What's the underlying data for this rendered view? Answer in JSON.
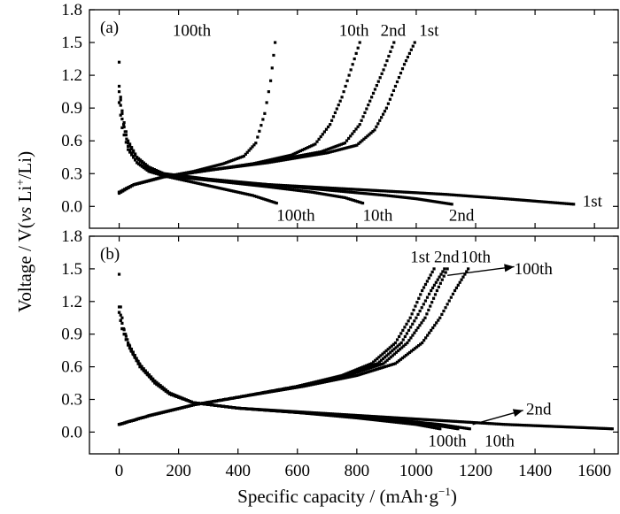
{
  "figure": {
    "ylabel": "Voltage / V(vs Li+/Li)",
    "ylabel_parts": {
      "pre": "Voltage / V(",
      "vs": "vs",
      "li": " Li",
      "plus": "+",
      "post": "/Li)"
    },
    "xlabel": "Specific capacity / (mAh·g−1)",
    "xlabel_parts": {
      "main": "Specific capacity / (mAh·g",
      "sup": "−1",
      "close": ")"
    }
  },
  "chart_data": [
    {
      "type": "scatter",
      "panel": "(a)",
      "xlabel": "Specific capacity / (mAh·g−1)",
      "ylabel": "Voltage / V(vs Li+/Li)",
      "xlim": [
        -100,
        1680
      ],
      "ylim": [
        -0.2,
        1.8
      ],
      "x_ticks": [
        0,
        200,
        400,
        600,
        800,
        1000,
        1200,
        1400,
        1600
      ],
      "y_ticks": [
        "0.0",
        "0.3",
        "0.6",
        "0.9",
        "1.2",
        "1.5",
        "1.8"
      ],
      "grid": false,
      "annotations": [
        {
          "text": "100th",
          "x": 180,
          "y": 1.56,
          "anchor": "start"
        },
        {
          "text": "10th",
          "x": 740,
          "y": 1.56,
          "anchor": "start"
        },
        {
          "text": "2nd",
          "x": 880,
          "y": 1.56,
          "anchor": "start"
        },
        {
          "text": "1st",
          "x": 1010,
          "y": 1.56,
          "anchor": "start"
        },
        {
          "text": "100th",
          "x": 530,
          "y": -0.13,
          "anchor": "start"
        },
        {
          "text": "10th",
          "x": 820,
          "y": -0.13,
          "anchor": "start"
        },
        {
          "text": "2nd",
          "x": 1110,
          "y": -0.13,
          "anchor": "start"
        },
        {
          "text": "1st",
          "x": 1560,
          "y": 0.0,
          "anchor": "start"
        }
      ],
      "series": [
        {
          "cycle": "1st",
          "curve": "discharge",
          "points": [
            [
              0,
              1.32
            ],
            [
              5,
              1.0
            ],
            [
              15,
              0.75
            ],
            [
              30,
              0.55
            ],
            [
              60,
              0.4
            ],
            [
              100,
              0.33
            ],
            [
              150,
              0.28
            ],
            [
              300,
              0.24
            ],
            [
              500,
              0.2
            ],
            [
              700,
              0.17
            ],
            [
              900,
              0.14
            ],
            [
              1100,
              0.11
            ],
            [
              1300,
              0.07
            ],
            [
              1530,
              0.02
            ]
          ]
        },
        {
          "cycle": "1st",
          "curve": "charge",
          "points": [
            [
              0,
              0.12
            ],
            [
              50,
              0.2
            ],
            [
              150,
              0.27
            ],
            [
              300,
              0.33
            ],
            [
              500,
              0.4
            ],
            [
              700,
              0.49
            ],
            [
              800,
              0.56
            ],
            [
              860,
              0.7
            ],
            [
              900,
              0.9
            ],
            [
              930,
              1.1
            ],
            [
              960,
              1.3
            ],
            [
              995,
              1.5
            ]
          ]
        },
        {
          "cycle": "2nd",
          "curve": "discharge",
          "points": [
            [
              0,
              1.1
            ],
            [
              10,
              0.85
            ],
            [
              30,
              0.6
            ],
            [
              60,
              0.45
            ],
            [
              100,
              0.36
            ],
            [
              150,
              0.3
            ],
            [
              300,
              0.25
            ],
            [
              500,
              0.2
            ],
            [
              700,
              0.15
            ],
            [
              900,
              0.1
            ],
            [
              1000,
              0.07
            ],
            [
              1120,
              0.02
            ]
          ]
        },
        {
          "cycle": "2nd",
          "curve": "charge",
          "points": [
            [
              0,
              0.13
            ],
            [
              50,
              0.2
            ],
            [
              150,
              0.27
            ],
            [
              300,
              0.33
            ],
            [
              500,
              0.41
            ],
            [
              680,
              0.5
            ],
            [
              760,
              0.58
            ],
            [
              810,
              0.75
            ],
            [
              850,
              1.0
            ],
            [
              890,
              1.25
            ],
            [
              925,
              1.5
            ]
          ]
        },
        {
          "cycle": "10th",
          "curve": "discharge",
          "points": [
            [
              0,
              1.05
            ],
            [
              10,
              0.8
            ],
            [
              30,
              0.58
            ],
            [
              60,
              0.44
            ],
            [
              100,
              0.35
            ],
            [
              150,
              0.3
            ],
            [
              300,
              0.24
            ],
            [
              500,
              0.18
            ],
            [
              650,
              0.13
            ],
            [
              760,
              0.08
            ],
            [
              820,
              0.03
            ]
          ]
        },
        {
          "cycle": "10th",
          "curve": "charge",
          "points": [
            [
              0,
              0.13
            ],
            [
              50,
              0.2
            ],
            [
              150,
              0.27
            ],
            [
              300,
              0.33
            ],
            [
              450,
              0.39
            ],
            [
              580,
              0.47
            ],
            [
              660,
              0.57
            ],
            [
              710,
              0.75
            ],
            [
              750,
              1.0
            ],
            [
              780,
              1.25
            ],
            [
              810,
              1.5
            ]
          ]
        },
        {
          "cycle": "100th",
          "curve": "discharge",
          "points": [
            [
              0,
              0.95
            ],
            [
              10,
              0.72
            ],
            [
              30,
              0.52
            ],
            [
              60,
              0.4
            ],
            [
              100,
              0.32
            ],
            [
              150,
              0.28
            ],
            [
              250,
              0.22
            ],
            [
              350,
              0.16
            ],
            [
              450,
              0.1
            ],
            [
              530,
              0.03
            ]
          ]
        },
        {
          "cycle": "100th",
          "curve": "charge",
          "points": [
            [
              0,
              0.13
            ],
            [
              50,
              0.2
            ],
            [
              150,
              0.27
            ],
            [
              250,
              0.32
            ],
            [
              350,
              0.39
            ],
            [
              420,
              0.46
            ],
            [
              460,
              0.58
            ],
            [
              490,
              0.85
            ],
            [
              510,
              1.15
            ],
            [
              525,
              1.5
            ]
          ]
        }
      ]
    },
    {
      "type": "scatter",
      "panel": "(b)",
      "xlabel": "Specific capacity / (mAh·g−1)",
      "ylabel": "Voltage / V(vs Li+/Li)",
      "xlim": [
        -100,
        1680
      ],
      "ylim": [
        -0.2,
        1.8
      ],
      "x_ticks": [
        0,
        200,
        400,
        600,
        800,
        1000,
        1200,
        1400,
        1600
      ],
      "y_ticks": [
        "0.0",
        "0.3",
        "0.6",
        "0.9",
        "1.2",
        "1.5",
        "1.8"
      ],
      "grid": false,
      "annotations": [
        {
          "text": "1st",
          "x": 980,
          "y": 1.56,
          "anchor": "start"
        },
        {
          "text": "2nd",
          "x": 1060,
          "y": 1.56,
          "anchor": "start"
        },
        {
          "text": "10th",
          "x": 1150,
          "y": 1.56,
          "anchor": "start"
        },
        {
          "text": "100th",
          "x": 1330,
          "y": 1.45,
          "anchor": "start"
        },
        {
          "text": "2nd",
          "x": 1370,
          "y": 0.16,
          "anchor": "start"
        },
        {
          "text": "100th",
          "x": 1040,
          "y": -0.13,
          "anchor": "start"
        },
        {
          "text": "10th",
          "x": 1230,
          "y": -0.13,
          "anchor": "start"
        }
      ],
      "arrows": [
        {
          "from": [
            1105,
            1.44
          ],
          "to": [
            1330,
            1.52
          ]
        },
        {
          "from": [
            1190,
            0.07
          ],
          "to": [
            1360,
            0.2
          ]
        }
      ],
      "series": [
        {
          "cycle": "1st",
          "curve": "discharge",
          "points": [
            [
              0,
              1.45
            ],
            [
              5,
              1.15
            ],
            [
              15,
              0.95
            ],
            [
              40,
              0.75
            ],
            [
              80,
              0.58
            ],
            [
              120,
              0.45
            ],
            [
              170,
              0.35
            ],
            [
              250,
              0.27
            ],
            [
              400,
              0.22
            ],
            [
              600,
              0.18
            ],
            [
              800,
              0.13
            ],
            [
              1000,
              0.07
            ],
            [
              1080,
              0.03
            ]
          ]
        },
        {
          "cycle": "1st",
          "curve": "charge",
          "points": [
            [
              0,
              0.07
            ],
            [
              100,
              0.15
            ],
            [
              250,
              0.25
            ],
            [
              400,
              0.32
            ],
            [
              600,
              0.42
            ],
            [
              750,
              0.52
            ],
            [
              850,
              0.63
            ],
            [
              930,
              0.82
            ],
            [
              980,
              1.05
            ],
            [
              1020,
              1.3
            ],
            [
              1060,
              1.5
            ]
          ]
        },
        {
          "cycle": "2nd",
          "curve": "discharge",
          "points": [
            [
              0,
              1.15
            ],
            [
              10,
              1.0
            ],
            [
              30,
              0.82
            ],
            [
              70,
              0.62
            ],
            [
              120,
              0.47
            ],
            [
              170,
              0.36
            ],
            [
              250,
              0.27
            ],
            [
              400,
              0.22
            ],
            [
              700,
              0.17
            ],
            [
              1000,
              0.12
            ],
            [
              1300,
              0.07
            ],
            [
              1660,
              0.03
            ]
          ]
        },
        {
          "cycle": "2nd",
          "curve": "charge",
          "points": [
            [
              0,
              0.07
            ],
            [
              100,
              0.15
            ],
            [
              250,
              0.25
            ],
            [
              400,
              0.32
            ],
            [
              600,
              0.42
            ],
            [
              760,
              0.52
            ],
            [
              870,
              0.63
            ],
            [
              950,
              0.82
            ],
            [
              1000,
              1.05
            ],
            [
              1050,
              1.3
            ],
            [
              1095,
              1.5
            ]
          ]
        },
        {
          "cycle": "10th",
          "curve": "discharge",
          "points": [
            [
              0,
              1.1
            ],
            [
              10,
              0.95
            ],
            [
              30,
              0.8
            ],
            [
              70,
              0.6
            ],
            [
              120,
              0.46
            ],
            [
              170,
              0.35
            ],
            [
              250,
              0.27
            ],
            [
              400,
              0.22
            ],
            [
              650,
              0.17
            ],
            [
              900,
              0.12
            ],
            [
              1080,
              0.07
            ],
            [
              1180,
              0.03
            ]
          ]
        },
        {
          "cycle": "10th",
          "curve": "charge",
          "points": [
            [
              0,
              0.07
            ],
            [
              100,
              0.15
            ],
            [
              250,
              0.25
            ],
            [
              400,
              0.32
            ],
            [
              620,
              0.42
            ],
            [
              800,
              0.52
            ],
            [
              930,
              0.63
            ],
            [
              1020,
              0.82
            ],
            [
              1080,
              1.05
            ],
            [
              1130,
              1.3
            ],
            [
              1175,
              1.5
            ]
          ]
        },
        {
          "cycle": "100th",
          "curve": "discharge",
          "points": [
            [
              0,
              1.1
            ],
            [
              10,
              0.95
            ],
            [
              30,
              0.8
            ],
            [
              70,
              0.6
            ],
            [
              120,
              0.46
            ],
            [
              170,
              0.35
            ],
            [
              250,
              0.27
            ],
            [
              400,
              0.22
            ],
            [
              650,
              0.17
            ],
            [
              900,
              0.12
            ],
            [
              1050,
              0.07
            ],
            [
              1140,
              0.03
            ]
          ]
        },
        {
          "cycle": "100th",
          "curve": "charge",
          "points": [
            [
              0,
              0.07
            ],
            [
              100,
              0.15
            ],
            [
              250,
              0.25
            ],
            [
              400,
              0.32
            ],
            [
              600,
              0.42
            ],
            [
              770,
              0.52
            ],
            [
              890,
              0.63
            ],
            [
              970,
              0.82
            ],
            [
              1030,
              1.05
            ],
            [
              1070,
              1.3
            ],
            [
              1105,
              1.5
            ]
          ]
        }
      ]
    }
  ]
}
